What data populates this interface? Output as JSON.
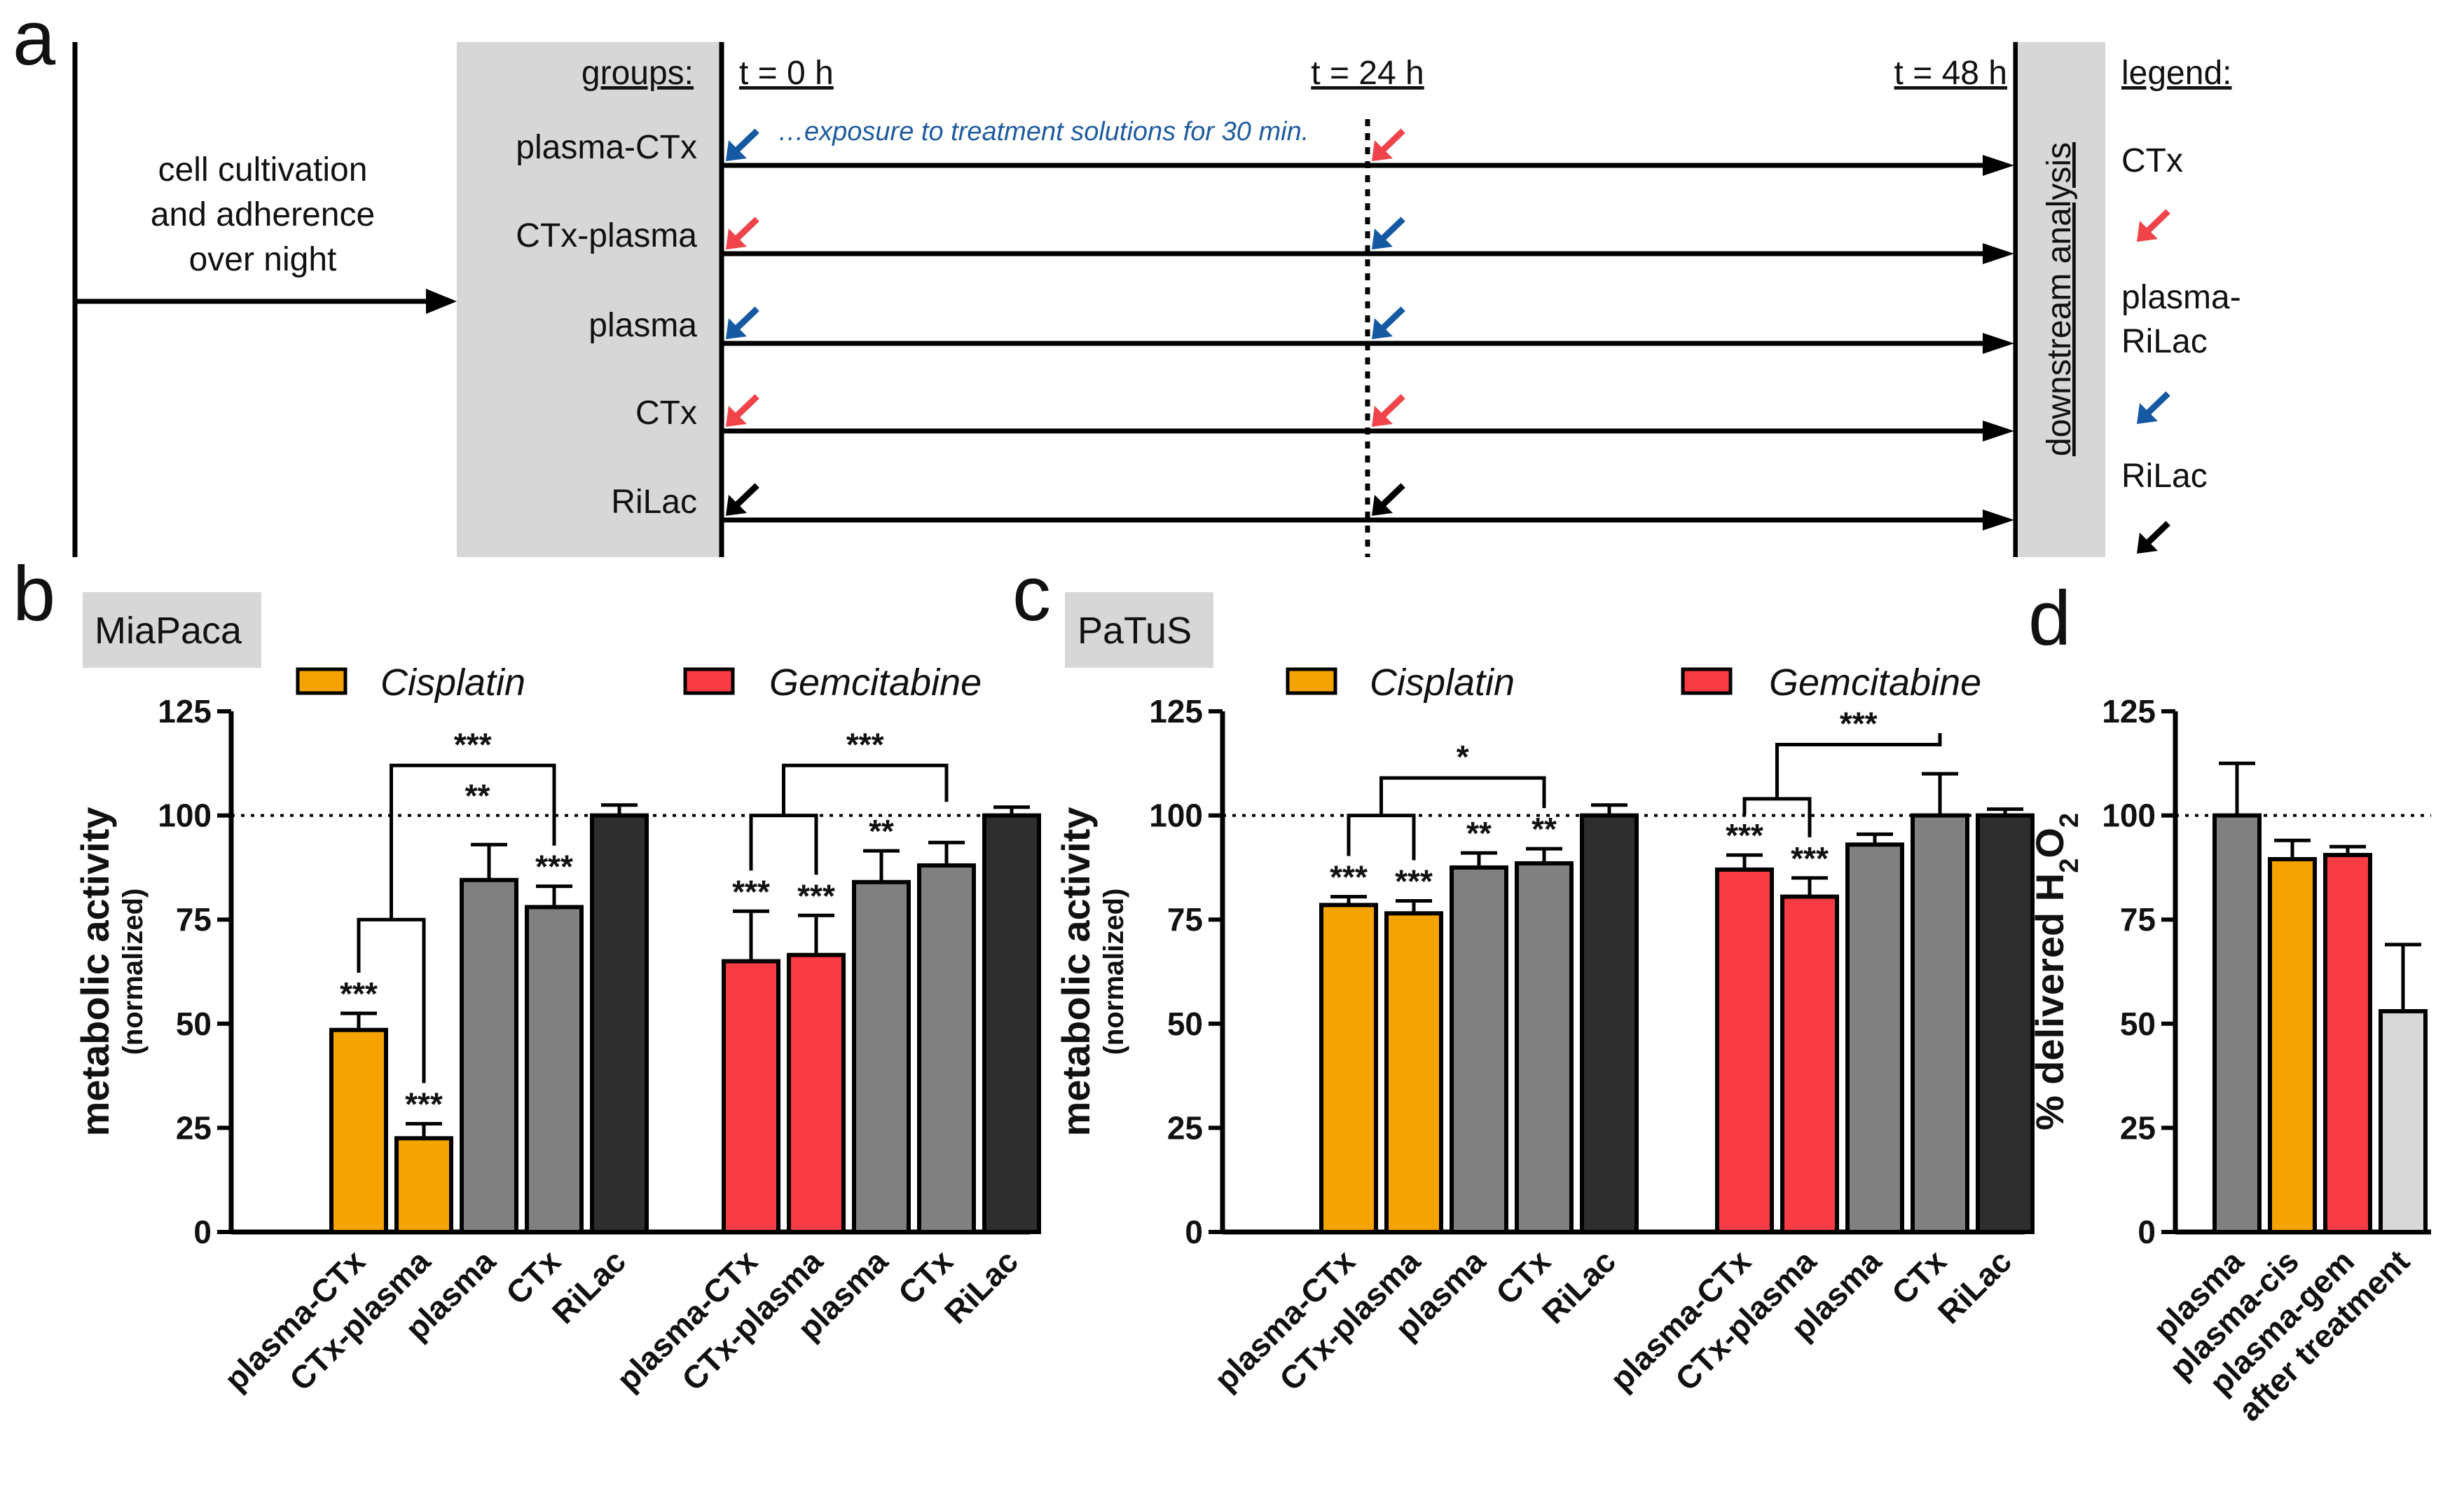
{
  "panel_labels": {
    "a": "a",
    "b": "b",
    "c": "c",
    "d": "d"
  },
  "timeline": {
    "intro_lines": [
      "cell cultivation",
      "and adherence",
      "over night"
    ],
    "groups_header": "groups:",
    "times": [
      "t = 0 h",
      "t = 24 h",
      "t = 48 h"
    ],
    "groups": [
      "plasma-CTx",
      "CTx-plasma",
      "plasma",
      "CTx",
      "RiLac"
    ],
    "note": "…exposure to treatment solutions for 30 min.",
    "downstream": "downstream analysis",
    "legend_header": "legend:",
    "legend_items": [
      {
        "lines": [
          "CTx"
        ],
        "arrow_color": "#f0444a"
      },
      {
        "lines": [
          "plasma-",
          "RiLac"
        ],
        "arrow_color": "#1659a3"
      },
      {
        "lines": [
          "RiLac"
        ],
        "arrow_color": "#000000"
      }
    ],
    "arrows": [
      {
        "t0": "#1659a3",
        "t24": "#f0444a"
      },
      {
        "t0": "#f0444a",
        "t24": "#1659a3"
      },
      {
        "t0": "#1659a3",
        "t24": "#1659a3"
      },
      {
        "t0": "#f0444a",
        "t24": "#f0444a"
      },
      {
        "t0": "#000000",
        "t24": "#000000"
      }
    ]
  },
  "colors": {
    "cisplatin": "#f5a300",
    "gemcitabine": "#f83c44",
    "plasma": "#808080",
    "ctx": "#808080",
    "rilac": "#2e2e2e",
    "after": "#d8d8d8"
  },
  "chart_data": [
    {
      "id": "b",
      "type": "bar",
      "cell_line": "MiaPaca",
      "ylabel": "metabolic activity",
      "ylabel_sub": "(normalized)",
      "ylim": [
        0,
        125
      ],
      "yticks": [
        0,
        25,
        50,
        75,
        100,
        125
      ],
      "reference_line": 100,
      "legend": [
        {
          "name": "Cisplatin",
          "color": "#f5a300"
        },
        {
          "name": "Gemcitabine",
          "color": "#f83c44"
        }
      ],
      "groups": [
        {
          "name": "Cisplatin",
          "bars": [
            {
              "label": "plasma-CTx",
              "value": 48.5,
              "error": 4,
              "color": "#f5a300",
              "sig": "***"
            },
            {
              "label": "CTx-plasma",
              "value": 22.5,
              "error": 3.5,
              "color": "#f5a300",
              "sig": "***"
            },
            {
              "label": "plasma",
              "value": 84.5,
              "error": 8.5,
              "color": "#808080",
              "sig": ""
            },
            {
              "label": "CTx",
              "value": 78,
              "error": 5,
              "color": "#808080",
              "sig": "***"
            },
            {
              "label": "RiLac",
              "value": 100,
              "error": 2.5,
              "color": "#2e2e2e",
              "sig": ""
            }
          ]
        },
        {
          "name": "Gemcitabine",
          "bars": [
            {
              "label": "plasma-CTx",
              "value": 65,
              "error": 12,
              "color": "#f83c44",
              "sig": "***"
            },
            {
              "label": "CTx-plasma",
              "value": 66.5,
              "error": 9.5,
              "color": "#f83c44",
              "sig": "***"
            },
            {
              "label": "plasma",
              "value": 84,
              "error": 7.5,
              "color": "#808080",
              "sig": "**"
            },
            {
              "label": "CTx",
              "value": 88,
              "error": 5.5,
              "color": "#808080",
              "sig": ""
            },
            {
              "label": "RiLac",
              "value": 100,
              "error": 2,
              "color": "#2e2e2e",
              "sig": ""
            }
          ]
        }
      ],
      "brackets": [
        {
          "from": [
            0,
            0
          ],
          "to": [
            0,
            1
          ],
          "y": 75,
          "height": 0,
          "label": ""
        },
        {
          "from": [
            0,
            0
          ],
          "to": [
            0,
            3
          ],
          "y": 112,
          "label": "***"
        },
        {
          "from": [
            0,
            0
          ],
          "to": [
            0,
            3
          ],
          "y": 100,
          "label": "**",
          "inner": true
        },
        {
          "from": [
            1,
            0
          ],
          "to": [
            1,
            1
          ],
          "y": 100,
          "label": ""
        },
        {
          "from": [
            1,
            0
          ],
          "to": [
            1,
            3
          ],
          "y": 112,
          "label": "***"
        }
      ]
    },
    {
      "id": "c",
      "type": "bar",
      "cell_line": "PaTuS",
      "ylabel": "metabolic activity",
      "ylabel_sub": "(normalized)",
      "ylim": [
        0,
        125
      ],
      "yticks": [
        0,
        25,
        50,
        75,
        100,
        125
      ],
      "reference_line": 100,
      "legend": [
        {
          "name": "Cisplatin",
          "color": "#f5a300"
        },
        {
          "name": "Gemcitabine",
          "color": "#f83c44"
        }
      ],
      "groups": [
        {
          "name": "Cisplatin",
          "bars": [
            {
              "label": "plasma-CTx",
              "value": 78.5,
              "error": 2,
              "color": "#f5a300",
              "sig": "***"
            },
            {
              "label": "CTx-plasma",
              "value": 76.5,
              "error": 3,
              "color": "#f5a300",
              "sig": "***"
            },
            {
              "label": "plasma",
              "value": 87.5,
              "error": 3.5,
              "color": "#808080",
              "sig": "**"
            },
            {
              "label": "CTx",
              "value": 88.5,
              "error": 3.5,
              "color": "#808080",
              "sig": "**"
            },
            {
              "label": "RiLac",
              "value": 100,
              "error": 2.5,
              "color": "#2e2e2e",
              "sig": ""
            }
          ]
        },
        {
          "name": "Gemcitabine",
          "bars": [
            {
              "label": "plasma-CTx",
              "value": 87,
              "error": 3.5,
              "color": "#f83c44",
              "sig": "***"
            },
            {
              "label": "CTx-plasma",
              "value": 80.5,
              "error": 4.5,
              "color": "#f83c44",
              "sig": "***"
            },
            {
              "label": "plasma",
              "value": 93,
              "error": 2.5,
              "color": "#808080",
              "sig": ""
            },
            {
              "label": "CTx",
              "value": 100,
              "error": 10,
              "color": "#808080",
              "sig": ""
            },
            {
              "label": "RiLac",
              "value": 100,
              "error": 1.5,
              "color": "#2e2e2e",
              "sig": ""
            }
          ]
        }
      ],
      "brackets": [
        {
          "from": [
            0,
            0
          ],
          "to": [
            0,
            1
          ],
          "y": 100,
          "label": ""
        },
        {
          "from": [
            0,
            0
          ],
          "to": [
            0,
            3
          ],
          "y": 109,
          "label": "*"
        },
        {
          "from": [
            1,
            0
          ],
          "to": [
            1,
            1
          ],
          "y": 104,
          "label": ""
        },
        {
          "from": [
            1,
            0
          ],
          "to": [
            1,
            3
          ],
          "y": 117,
          "label": "***"
        }
      ]
    },
    {
      "id": "d",
      "type": "bar",
      "ylabel": "% delivered H2O2",
      "ylim": [
        0,
        125
      ],
      "yticks": [
        0,
        25,
        50,
        75,
        100,
        125
      ],
      "reference_line": 100,
      "bars": [
        {
          "label": "plasma",
          "value": 100,
          "error": 12.5,
          "color": "#808080"
        },
        {
          "label": "plasma-cis",
          "value": 89.5,
          "error": 4.5,
          "color": "#f5a300"
        },
        {
          "label": "plasma-gem",
          "value": 90.5,
          "error": 2,
          "color": "#f83c44"
        },
        {
          "label": "after treatment",
          "value": 53,
          "error": 16,
          "color": "#d8d8d8"
        }
      ]
    }
  ]
}
